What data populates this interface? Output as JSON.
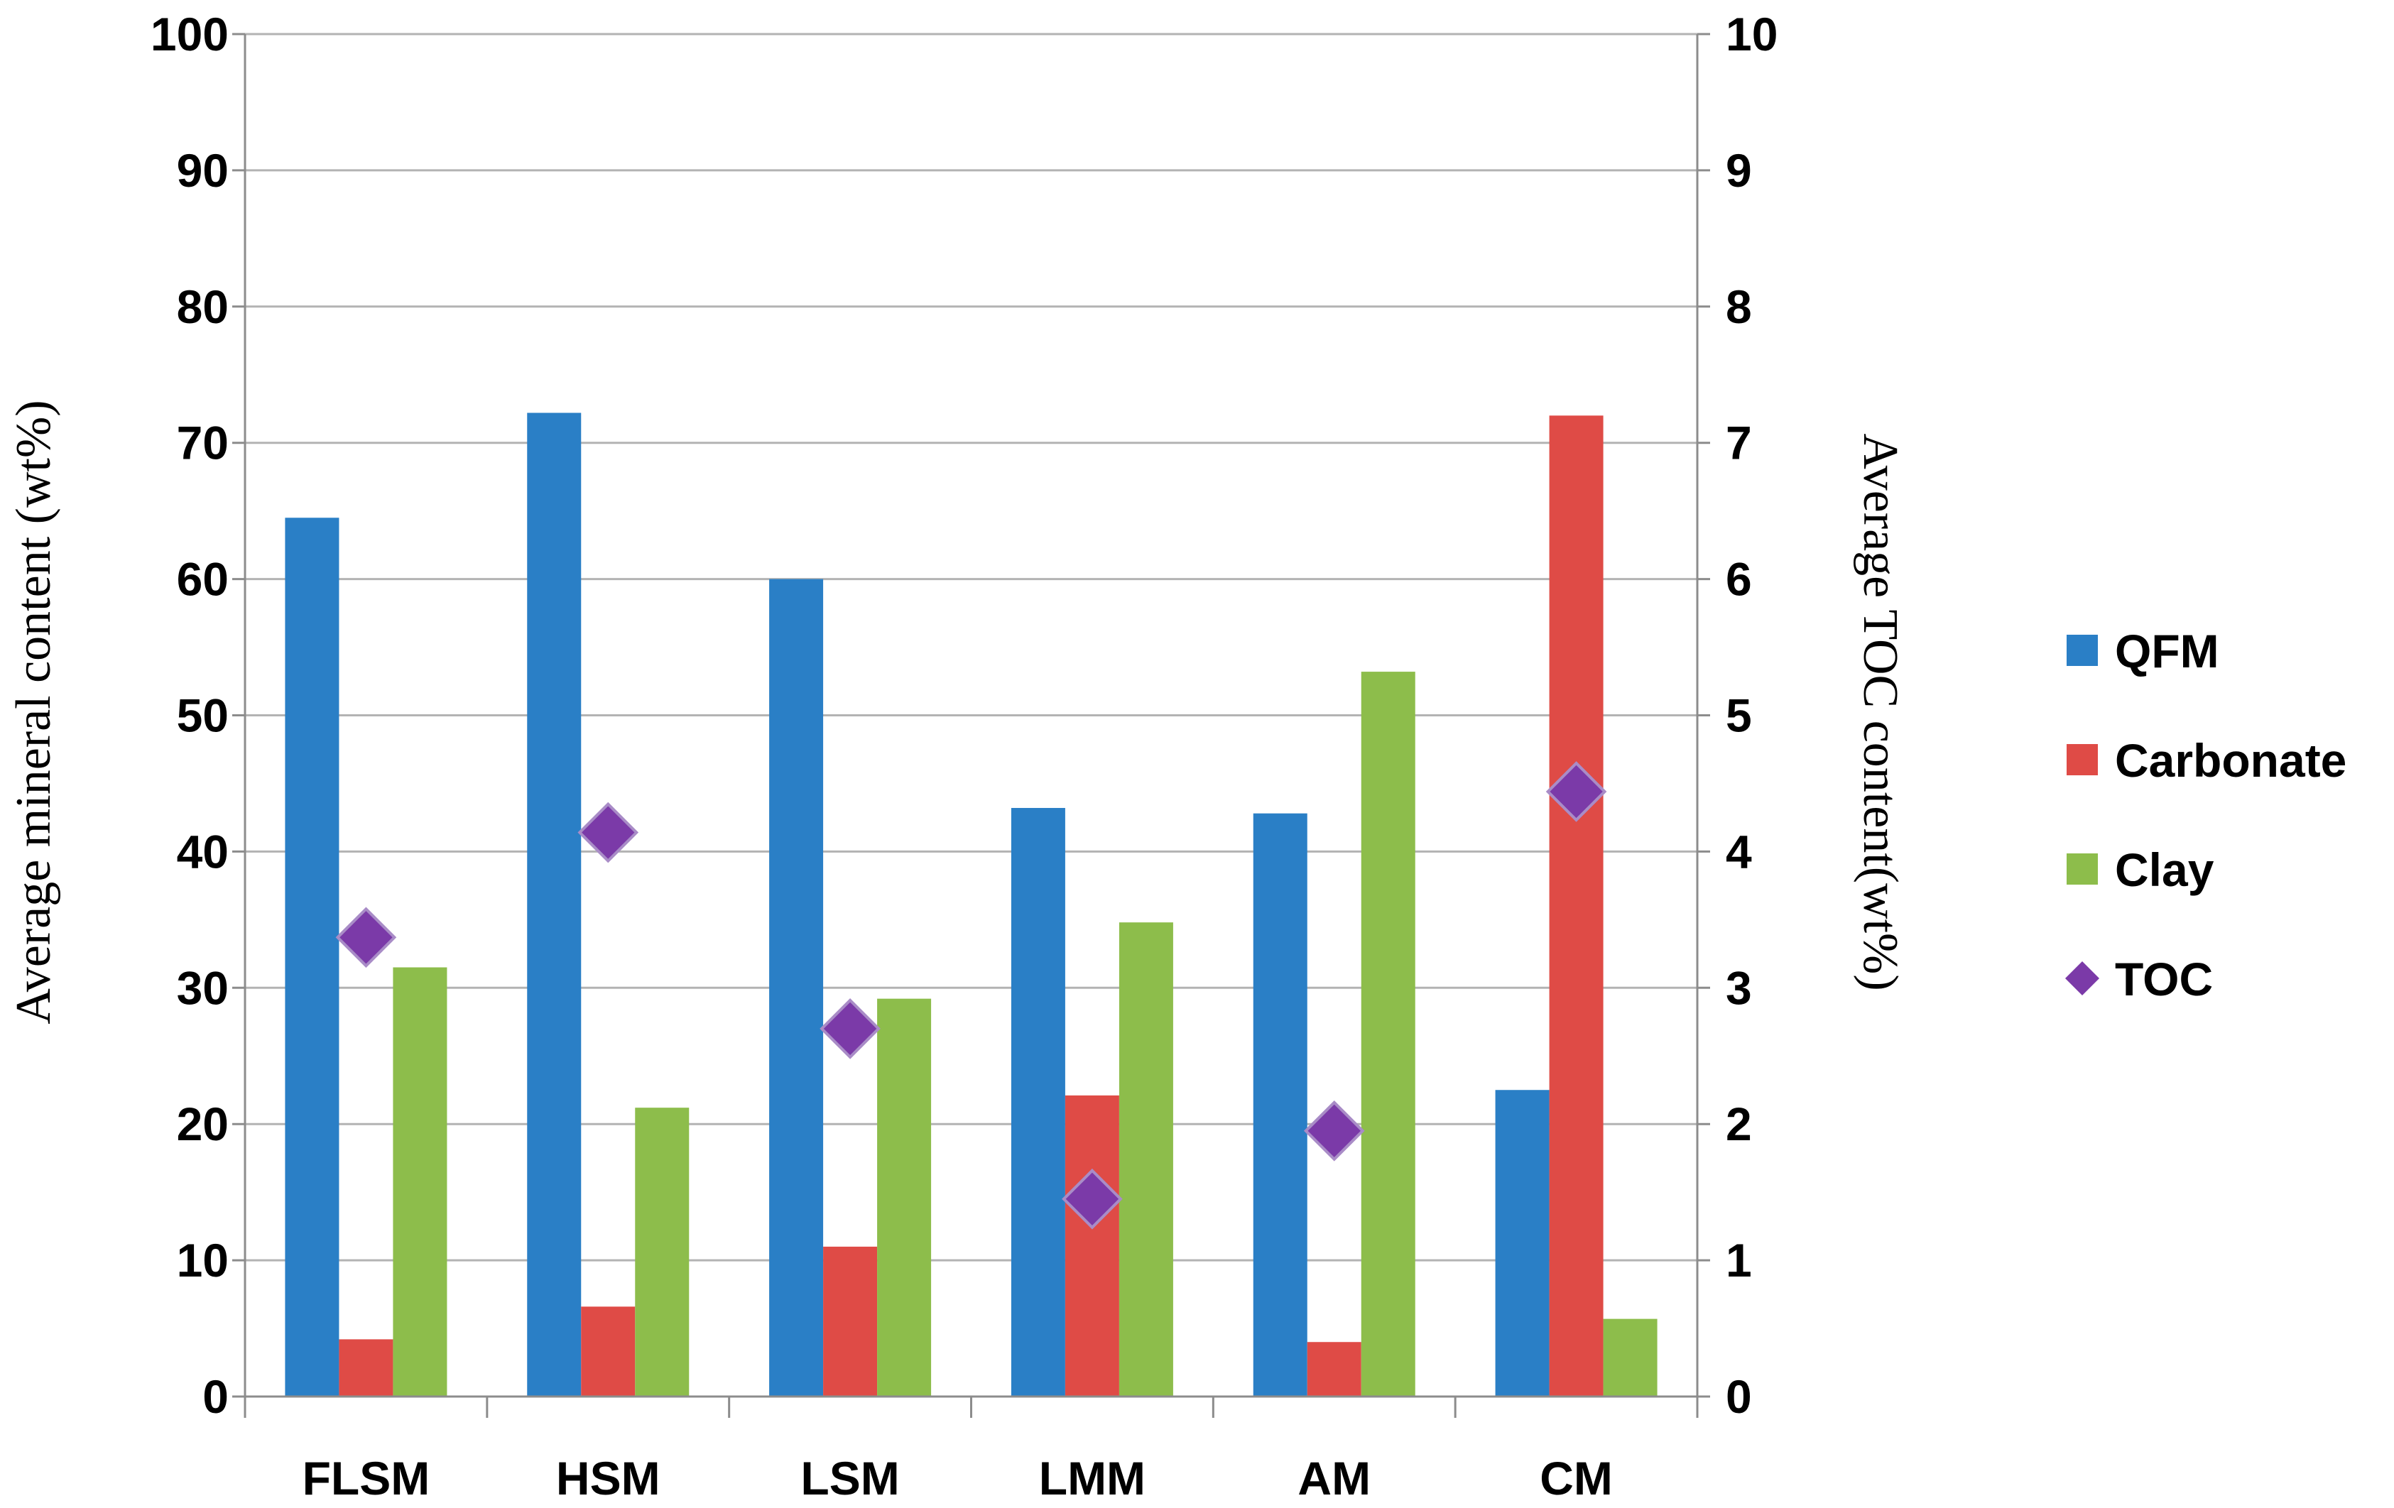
{
  "chart_data": {
    "type": "bar",
    "categories": [
      "FLSM",
      "HSM",
      "LSM",
      "LMM",
      "AM",
      "CM"
    ],
    "series": [
      {
        "name": "QFM",
        "axis": "left",
        "color": "#2a7fc6",
        "values": [
          64.5,
          72.2,
          60.0,
          43.2,
          42.8,
          22.5
        ]
      },
      {
        "name": "Carbonate",
        "axis": "left",
        "color": "#df4b46",
        "values": [
          4.2,
          6.6,
          11.0,
          22.1,
          4.0,
          72.0
        ]
      },
      {
        "name": "Clay",
        "axis": "left",
        "color": "#8dbd4b",
        "values": [
          31.5,
          21.2,
          29.2,
          34.8,
          53.2,
          5.7
        ]
      }
    ],
    "line_series": [
      {
        "name": "TOC",
        "axis": "right",
        "type": "scatter",
        "marker": "diamond",
        "color": "#7b3aa8",
        "values": [
          3.37,
          4.14,
          2.7,
          1.45,
          1.95,
          4.44
        ]
      }
    ],
    "legend": [
      "QFM",
      "Carbonate",
      "Clay",
      "TOC"
    ],
    "legend_position": "right",
    "ylabel": "Average mineral content (wt%)",
    "y2label": "Average TOC content(wt%)",
    "xlabel": "",
    "ylim": [
      0,
      100
    ],
    "y2lim": [
      0,
      10
    ],
    "yticks": [
      "0",
      "10",
      "20",
      "30",
      "40",
      "50",
      "60",
      "70",
      "80",
      "90",
      "100"
    ],
    "y2ticks": [
      "0",
      "1",
      "2",
      "3",
      "4",
      "5",
      "6",
      "7",
      "8",
      "9",
      "10"
    ],
    "grid": true
  }
}
